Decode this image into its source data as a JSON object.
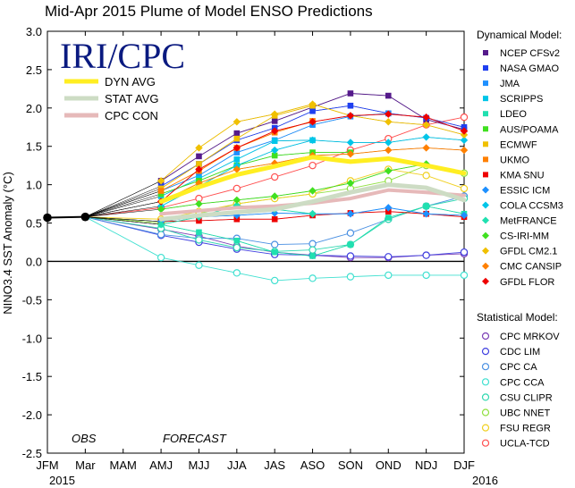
{
  "chart_data": {
    "type": "line",
    "title": "Mid-Apr 2015 Plume of Model ENSO Predictions",
    "ylabel": "NINO3.4 SST Anomaly (°C)",
    "xlabel": "",
    "ylim": [
      -2.5,
      3.0
    ],
    "yticks": [
      "-2.5",
      "-2.0",
      "-1.5",
      "-1.0",
      "-0.5",
      "0.0",
      "0.5",
      "1.0",
      "1.5",
      "2.0",
      "2.5",
      "3.0"
    ],
    "categories": [
      "JFM",
      "Mar",
      "MAM",
      "AMJ",
      "MJJ",
      "JJA",
      "JAS",
      "ASO",
      "SON",
      "OND",
      "NDJ",
      "DJF"
    ],
    "year_labels": {
      "start": "2015",
      "end": "2016"
    },
    "phase_labels": {
      "obs": "OBS",
      "forecast": "FORECAST"
    },
    "logo": "IRI/CPC",
    "observed": [
      0.57,
      0.58
    ],
    "averages": [
      {
        "name": "DYN AVG",
        "color": "#ffee22",
        "values": [
          null,
          null,
          null,
          0.78,
          0.97,
          1.13,
          1.24,
          1.36,
          1.3,
          1.34,
          1.25,
          1.15
        ]
      },
      {
        "name": "STAT AVG",
        "color": "#cddcc4",
        "values": [
          null,
          null,
          null,
          0.55,
          0.6,
          0.64,
          0.68,
          0.78,
          0.9,
          1.0,
          0.96,
          0.8
        ]
      },
      {
        "name": "CPC CON",
        "color": "#e6b9b9",
        "values": [
          null,
          null,
          null,
          0.62,
          0.66,
          0.7,
          0.72,
          0.76,
          0.82,
          0.93,
          0.9,
          0.86
        ]
      }
    ],
    "dynamical_header": "Dynamical Model:",
    "statistical_header": "Statistical Model:",
    "dynamical": [
      {
        "name": "NCEP CFSv2",
        "color": "#551a8b",
        "marker": "square",
        "values": [
          1.05,
          1.37,
          1.67,
          1.83,
          2.01,
          2.19,
          2.16,
          1.85,
          1.72
        ]
      },
      {
        "name": "NASA GMAO",
        "color": "#1f3ff0",
        "marker": "square",
        "values": [
          0.98,
          1.27,
          1.58,
          1.74,
          1.96,
          2.03,
          1.93,
          1.87,
          1.75
        ]
      },
      {
        "name": "JMA",
        "color": "#1e90ff",
        "marker": "square",
        "values": [
          0.92,
          1.12,
          1.42,
          1.58,
          1.78,
          1.89,
          1.93,
          null,
          null
        ]
      },
      {
        "name": "SCRIPPS",
        "color": "#00c5e8",
        "marker": "square",
        "values": [
          0.85,
          1.08,
          1.33,
          1.57,
          1.58,
          null,
          null,
          null,
          null
        ]
      },
      {
        "name": "LDEO",
        "color": "#20e0b0",
        "marker": "square",
        "values": [
          0.48,
          0.38,
          0.27,
          0.12,
          0.07,
          0.22,
          0.57,
          0.72,
          0.62
        ]
      },
      {
        "name": "AUS/POAMA",
        "color": "#40e020",
        "marker": "square",
        "values": [
          0.88,
          1.05,
          1.25,
          1.38,
          1.42,
          1.42,
          null,
          null,
          null
        ]
      },
      {
        "name": "ECMWF",
        "color": "#f0c000",
        "marker": "square",
        "values": [
          0.95,
          1.27,
          1.6,
          1.9,
          2.03,
          null,
          null,
          null,
          null
        ]
      },
      {
        "name": "UKMO",
        "color": "#ff8000",
        "marker": "square",
        "values": [
          0.92,
          1.18,
          1.48,
          1.68,
          1.83,
          null,
          null,
          null,
          null
        ]
      },
      {
        "name": "KMA SNU",
        "color": "#ee0000",
        "marker": "square",
        "values": [
          0.52,
          0.53,
          0.55,
          0.55,
          0.6,
          0.63,
          0.65,
          0.62,
          0.58
        ]
      },
      {
        "name": "ESSIC ICM",
        "color": "#1e90ff",
        "marker": "diamond",
        "values": [
          0.52,
          0.58,
          0.6,
          0.63,
          0.62,
          0.62,
          0.7,
          0.62,
          0.6
        ]
      },
      {
        "name": "COLA CCSM3",
        "color": "#00c5e8",
        "marker": "diamond",
        "values": [
          0.72,
          0.98,
          1.25,
          1.45,
          1.58,
          1.55,
          1.55,
          1.62,
          1.58
        ]
      },
      {
        "name": "MetFRANCE",
        "color": "#20e0b0",
        "marker": "diamond",
        "values": [
          0.48,
          0.58,
          0.73,
          0.68,
          0.62,
          null,
          null,
          null,
          null
        ]
      },
      {
        "name": "CS-IRI-MM",
        "color": "#40e020",
        "marker": "diamond",
        "values": [
          0.68,
          0.75,
          0.8,
          0.85,
          0.92,
          1.02,
          1.18,
          1.27,
          null
        ]
      },
      {
        "name": "GFDL CM2.1",
        "color": "#f0c000",
        "marker": "diamond",
        "values": [
          1.05,
          1.48,
          1.82,
          1.92,
          2.05,
          1.9,
          1.82,
          1.78,
          1.65
        ]
      },
      {
        "name": "CMC CANSIP",
        "color": "#ff8000",
        "marker": "diamond",
        "values": [
          0.78,
          1.02,
          1.2,
          1.28,
          1.38,
          1.4,
          1.45,
          1.48,
          1.45
        ]
      },
      {
        "name": "GFDL FLOR",
        "color": "#ee0000",
        "marker": "diamond",
        "values": [
          0.78,
          1.2,
          1.48,
          1.7,
          1.82,
          1.9,
          1.92,
          1.88,
          1.7
        ]
      }
    ],
    "statistical": [
      {
        "name": "CPC MRKOV",
        "color": "#7b3fb5",
        "values": [
          0.42,
          0.33,
          0.2,
          0.12,
          0.08,
          0.05,
          0.05,
          0.08,
          0.1
        ]
      },
      {
        "name": "CDC LIM",
        "color": "#4040e0",
        "values": [
          0.34,
          0.25,
          0.16,
          0.09,
          0.08,
          0.07,
          0.06,
          0.08,
          0.12
        ]
      },
      {
        "name": "CPC CA",
        "color": "#4a90e2",
        "values": [
          0.35,
          0.3,
          0.3,
          0.22,
          0.23,
          0.37,
          0.55,
          0.72,
          0.85
        ]
      },
      {
        "name": "CPC CCA",
        "color": "#40e0d0",
        "values": [
          0.05,
          -0.05,
          -0.15,
          -0.25,
          -0.22,
          -0.2,
          -0.18,
          -0.18,
          -0.18
        ]
      },
      {
        "name": "CSU CLIPR",
        "color": "#30d8b0",
        "values": [
          0.43,
          0.28,
          0.18,
          0.13,
          0.15,
          0.22,
          0.55,
          0.72,
          0.82
        ]
      },
      {
        "name": "UBC NNET",
        "color": "#90e040",
        "values": [
          0.5,
          0.62,
          0.75,
          0.82,
          0.88,
          0.95,
          1.05,
          1.25,
          1.15
        ]
      },
      {
        "name": "FSU REGR",
        "color": "#f0d020",
        "values": [
          0.55,
          0.65,
          0.75,
          0.82,
          0.88,
          1.05,
          1.2,
          1.12,
          0.95
        ]
      },
      {
        "name": "UCLA-TCD",
        "color": "#ff5050",
        "values": [
          0.7,
          0.82,
          0.95,
          1.1,
          1.25,
          1.45,
          1.6,
          1.78,
          1.88
        ]
      }
    ]
  }
}
